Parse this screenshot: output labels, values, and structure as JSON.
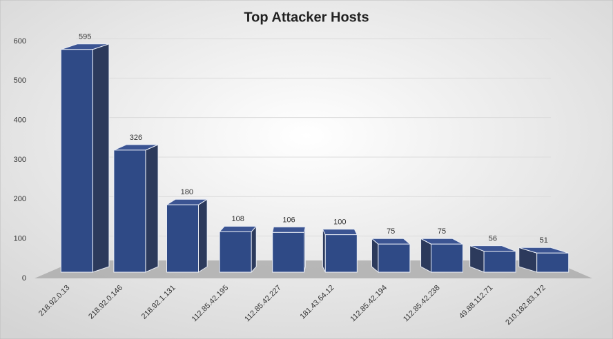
{
  "chart_data": {
    "type": "bar3d",
    "title": "Top Attacker Hosts",
    "categories": [
      "218.92.0.13",
      "218.92.0.146",
      "218.92.1.131",
      "112.85.42.195",
      "112.85.42.227",
      "181.43.64.12",
      "112.85.42.194",
      "112.85.42.238",
      "49.88.112.71",
      "210.182.83.172"
    ],
    "values": [
      595,
      326,
      180,
      108,
      106,
      100,
      75,
      75,
      56,
      51
    ],
    "color": "#2f4a86",
    "ylim": [
      0,
      600
    ],
    "yticks": [
      0,
      100,
      200,
      300,
      400,
      500,
      600
    ],
    "grid": true
  }
}
